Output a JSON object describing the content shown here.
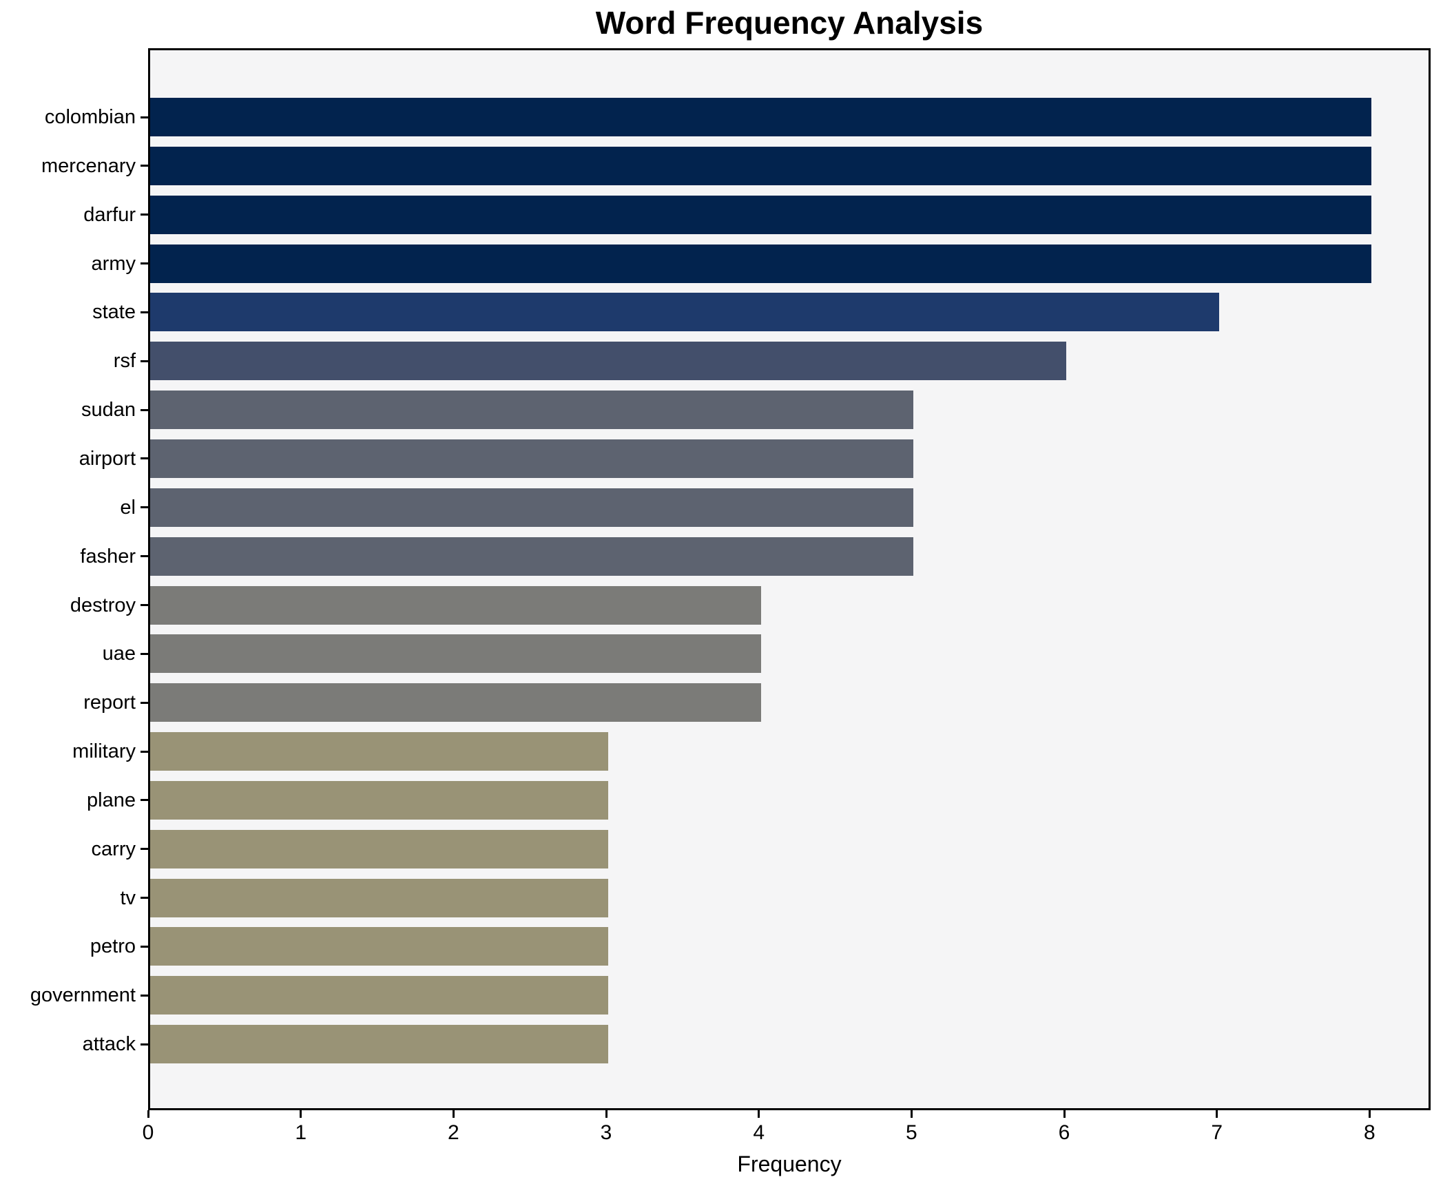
{
  "chart_data": {
    "type": "bar",
    "orientation": "horizontal",
    "title": "Word Frequency Analysis",
    "xlabel": "Frequency",
    "ylabel": "",
    "categories": [
      "colombian",
      "mercenary",
      "darfur",
      "army",
      "state",
      "rsf",
      "sudan",
      "airport",
      "el",
      "fasher",
      "destroy",
      "uae",
      "report",
      "military",
      "plane",
      "carry",
      "tv",
      "petro",
      "government",
      "attack"
    ],
    "values": [
      8,
      8,
      8,
      8,
      7,
      6,
      5,
      5,
      5,
      5,
      4,
      4,
      4,
      3,
      3,
      3,
      3,
      3,
      3,
      3
    ],
    "xticks": [
      0,
      1,
      2,
      3,
      4,
      5,
      6,
      7,
      8
    ],
    "xlim": [
      0,
      8.4
    ],
    "grid": false,
    "legend": null,
    "colors": {
      "bar_color_by_value": {
        "8": "#02234e",
        "7": "#1e3a6c",
        "6": "#434f6b",
        "5": "#5d6370",
        "4": "#7b7b78",
        "3": "#999376"
      },
      "plot_background": "#f5f5f6",
      "figure_background": "#ffffff",
      "spine_color": "#000000",
      "text_color": "#000000"
    }
  }
}
